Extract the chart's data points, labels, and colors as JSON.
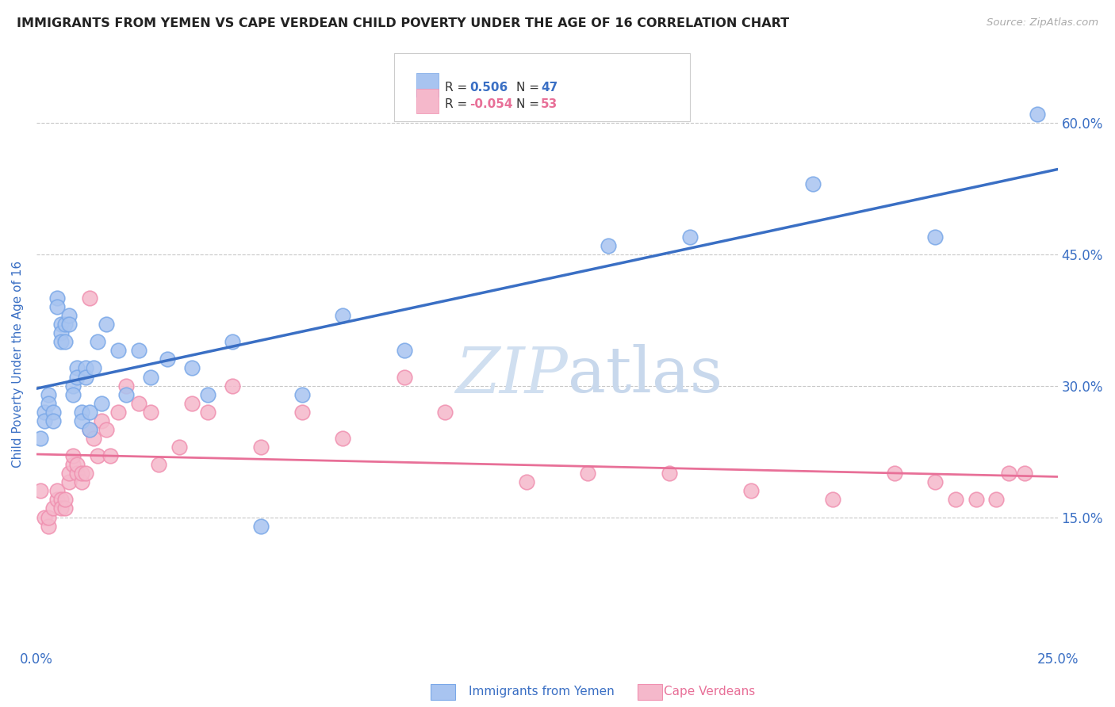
{
  "title": "IMMIGRANTS FROM YEMEN VS CAPE VERDEAN CHILD POVERTY UNDER THE AGE OF 16 CORRELATION CHART",
  "source": "Source: ZipAtlas.com",
  "ylabel": "Child Poverty Under the Age of 16",
  "right_ytick_vals": [
    0.15,
    0.3,
    0.45,
    0.6
  ],
  "right_ytick_labels": [
    "15.0%",
    "30.0%",
    "45.0%",
    "60.0%"
  ],
  "legend1_R": "0.506",
  "legend1_N": "47",
  "legend2_R": "-0.054",
  "legend2_N": "53",
  "yemen_color": "#a8c4f0",
  "cape_verde_color": "#f5b8cb",
  "yemen_edge_color": "#7aa8e8",
  "cape_verde_edge_color": "#f090b0",
  "yemen_line_color": "#3a6fc4",
  "cape_verde_line_color": "#e87098",
  "background_color": "#ffffff",
  "grid_color": "#c8c8c8",
  "title_color": "#222222",
  "axis_label_color": "#3a6fc4",
  "tick_label_color": "#3a6fc4",
  "watermark_color": "#d0dff0",
  "legend_R_color": "#3a6fc4",
  "legend_N_color": "#3a6fc4",
  "xlim": [
    0.0,
    0.25
  ],
  "ylim": [
    0.0,
    0.65
  ],
  "yemen_scatter_x": [
    0.001,
    0.002,
    0.002,
    0.003,
    0.003,
    0.004,
    0.004,
    0.005,
    0.005,
    0.006,
    0.006,
    0.006,
    0.007,
    0.007,
    0.008,
    0.008,
    0.009,
    0.009,
    0.01,
    0.01,
    0.011,
    0.011,
    0.012,
    0.012,
    0.013,
    0.013,
    0.014,
    0.015,
    0.016,
    0.017,
    0.02,
    0.022,
    0.025,
    0.028,
    0.032,
    0.038,
    0.042,
    0.048,
    0.055,
    0.065,
    0.075,
    0.09,
    0.14,
    0.16,
    0.19,
    0.22,
    0.245
  ],
  "yemen_scatter_y": [
    0.24,
    0.27,
    0.26,
    0.29,
    0.28,
    0.27,
    0.26,
    0.4,
    0.39,
    0.37,
    0.36,
    0.35,
    0.37,
    0.35,
    0.38,
    0.37,
    0.3,
    0.29,
    0.32,
    0.31,
    0.27,
    0.26,
    0.32,
    0.31,
    0.27,
    0.25,
    0.32,
    0.35,
    0.28,
    0.37,
    0.34,
    0.29,
    0.34,
    0.31,
    0.33,
    0.32,
    0.29,
    0.35,
    0.14,
    0.29,
    0.38,
    0.34,
    0.46,
    0.47,
    0.53,
    0.47,
    0.61
  ],
  "cape_scatter_x": [
    0.001,
    0.002,
    0.003,
    0.003,
    0.004,
    0.005,
    0.005,
    0.006,
    0.006,
    0.007,
    0.007,
    0.008,
    0.008,
    0.009,
    0.009,
    0.01,
    0.01,
    0.011,
    0.011,
    0.012,
    0.013,
    0.013,
    0.014,
    0.015,
    0.016,
    0.017,
    0.018,
    0.02,
    0.022,
    0.025,
    0.028,
    0.03,
    0.035,
    0.038,
    0.042,
    0.048,
    0.055,
    0.065,
    0.075,
    0.09,
    0.1,
    0.12,
    0.135,
    0.155,
    0.175,
    0.195,
    0.21,
    0.22,
    0.225,
    0.23,
    0.235,
    0.238,
    0.242
  ],
  "cape_scatter_y": [
    0.18,
    0.15,
    0.14,
    0.15,
    0.16,
    0.17,
    0.18,
    0.17,
    0.16,
    0.16,
    0.17,
    0.19,
    0.2,
    0.21,
    0.22,
    0.2,
    0.21,
    0.19,
    0.2,
    0.2,
    0.25,
    0.4,
    0.24,
    0.22,
    0.26,
    0.25,
    0.22,
    0.27,
    0.3,
    0.28,
    0.27,
    0.21,
    0.23,
    0.28,
    0.27,
    0.3,
    0.23,
    0.27,
    0.24,
    0.31,
    0.27,
    0.19,
    0.2,
    0.2,
    0.18,
    0.17,
    0.2,
    0.19,
    0.17,
    0.17,
    0.17,
    0.2,
    0.2
  ]
}
